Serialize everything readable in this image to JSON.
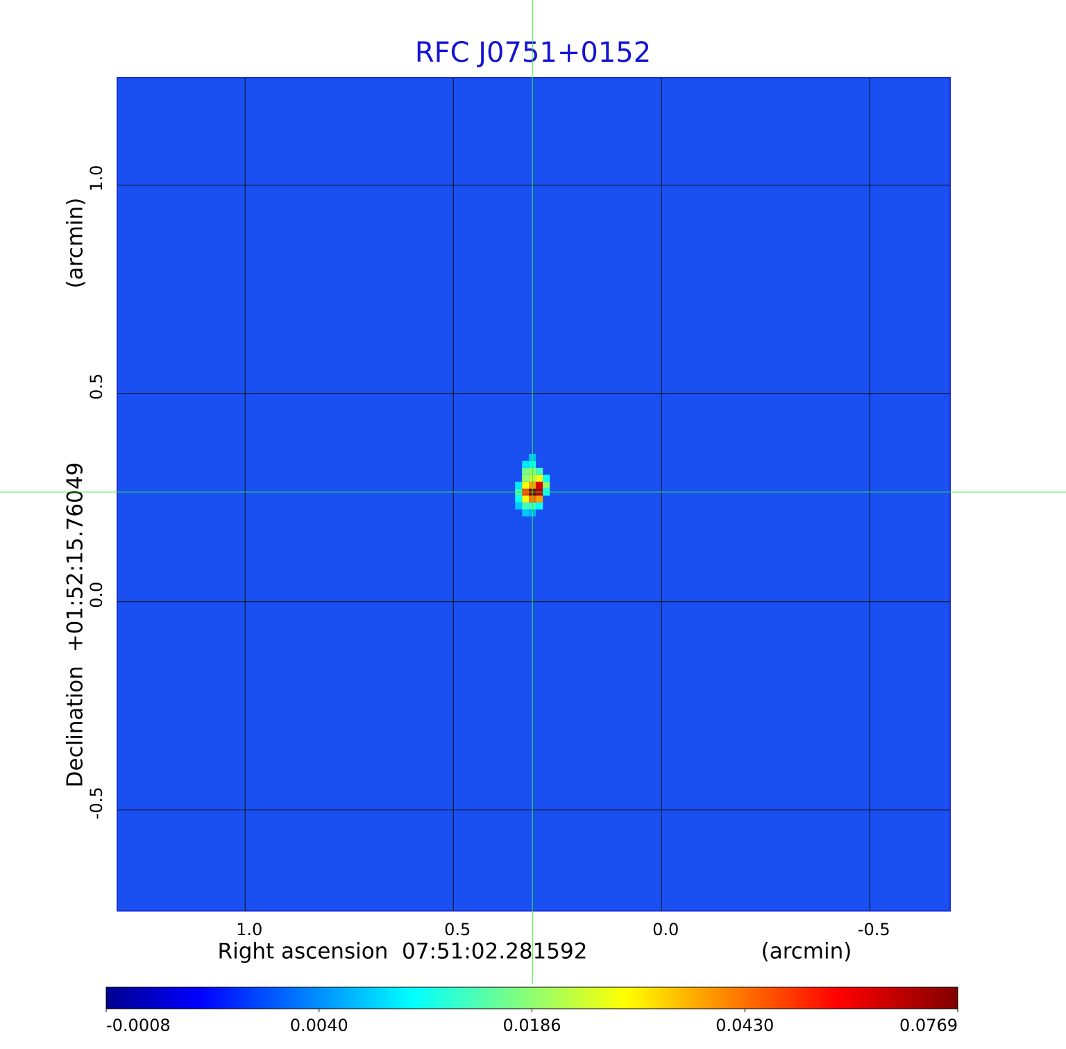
{
  "chart_data": {
    "type": "image",
    "title": "RFC J0751+0152",
    "xlabel": "Right ascension  07:51:02.281592",
    "xunit": "(arcmin)",
    "ylabel": "Declination  +01:52:15.76049",
    "yunit": "(arcmin)",
    "xlim": [
      1.307,
      -0.693
    ],
    "ylim": [
      -0.742,
      1.258
    ],
    "xticks": [
      {
        "value": 1,
        "label": "1.0"
      },
      0.5,
      {
        "value": 0,
        "label": "0.0"
      },
      -0.5
    ],
    "yticks": [
      {
        "value": 1,
        "label": "1.0"
      },
      0.5,
      {
        "value": 0,
        "label": "0.0"
      },
      -0.5
    ],
    "grid": true,
    "crosshair": {
      "x": 0.31,
      "y": 0.2633
    },
    "colormap": "jet",
    "colorbar_ticks": [
      -0.0008,
      {
        "value": 0.004,
        "label": "0.0040"
      },
      {
        "value": 0.0186,
        "label": "0.0186"
      },
      {
        "value": 0.043,
        "label": "0.0430"
      },
      0.0769
    ],
    "pixels": [
      {
        "x": 0.31,
        "y": 0.2633,
        "value": 0.0769
      },
      {
        "x": 0.2933,
        "y": 0.2633,
        "value": 0.07
      },
      {
        "x": 0.2933,
        "y": 0.28,
        "value": 0.065
      },
      {
        "x": 0.3267,
        "y": 0.2633,
        "value": 0.05
      },
      {
        "x": 0.31,
        "y": 0.2467,
        "value": 0.045
      },
      {
        "x": 0.2933,
        "y": 0.2467,
        "value": 0.04
      },
      {
        "x": 0.31,
        "y": 0.28,
        "value": 0.04
      },
      {
        "x": 0.3267,
        "y": 0.2467,
        "value": 0.03
      },
      {
        "x": 0.3267,
        "y": 0.28,
        "value": 0.03
      },
      {
        "x": 0.2933,
        "y": 0.2967,
        "value": 0.03
      },
      {
        "x": 0.31,
        "y": 0.2967,
        "value": 0.025
      },
      {
        "x": 0.3267,
        "y": 0.2967,
        "value": 0.02
      },
      {
        "x": 0.2767,
        "y": 0.28,
        "value": 0.02
      },
      {
        "x": 0.31,
        "y": 0.3133,
        "value": 0.02
      },
      {
        "x": 0.3267,
        "y": 0.3133,
        "value": 0.018
      },
      {
        "x": 0.2933,
        "y": 0.3133,
        "value": 0.015
      },
      {
        "x": 0.3433,
        "y": 0.2633,
        "value": 0.015
      },
      {
        "x": 0.3267,
        "y": 0.23,
        "value": 0.015
      },
      {
        "x": 0.31,
        "y": 0.23,
        "value": 0.015
      },
      {
        "x": 0.2767,
        "y": 0.2967,
        "value": 0.012
      },
      {
        "x": 0.2767,
        "y": 0.2633,
        "value": 0.012
      },
      {
        "x": 0.31,
        "y": 0.33,
        "value": 0.012
      },
      {
        "x": 0.3433,
        "y": 0.2467,
        "value": 0.012
      },
      {
        "x": 0.2933,
        "y": 0.23,
        "value": 0.012
      },
      {
        "x": 0.3267,
        "y": 0.33,
        "value": 0.01
      },
      {
        "x": 0.3433,
        "y": 0.28,
        "value": 0.01
      },
      {
        "x": 0.31,
        "y": 0.3467,
        "value": 0.008
      },
      {
        "x": 0.3433,
        "y": 0.23,
        "value": 0.008
      },
      {
        "x": 0.3267,
        "y": 0.2133,
        "value": 0.008
      },
      {
        "x": 0.31,
        "y": 0.2133,
        "value": 0.007
      }
    ]
  }
}
